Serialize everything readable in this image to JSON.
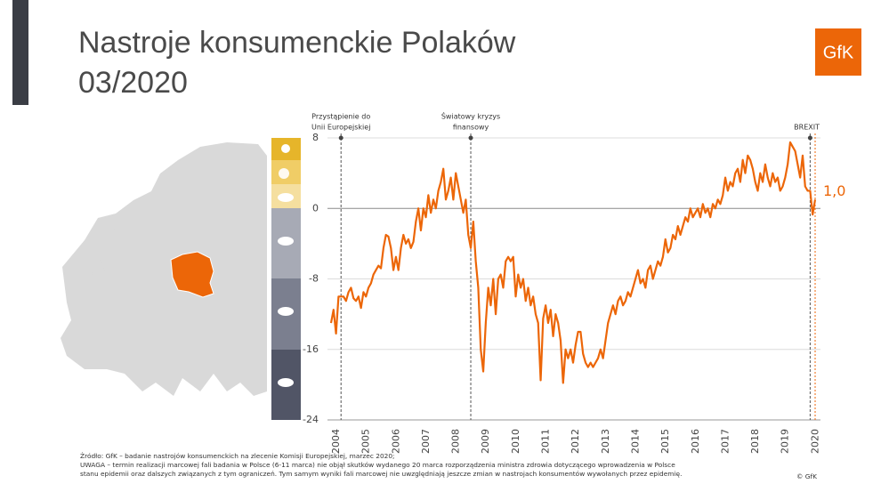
{
  "title_lines": [
    "Nastroje konsumenckie Polaków",
    "03/2020"
  ],
  "logo": "GfK",
  "chart_data": {
    "type": "line",
    "annotations": [
      {
        "lines": [
          "Przystąpienie do",
          "Unii Europejskiej"
        ]
      },
      {
        "lines": [
          "Światowy kryzys",
          "finansowy"
        ]
      },
      {
        "lines": [
          "BREXIT"
        ]
      }
    ],
    "color": "#ec6608",
    "ylim": [
      -24,
      8
    ],
    "yticks": [
      -24,
      -16,
      -8,
      0,
      8
    ],
    "grid": true,
    "categories": [
      "2004",
      null,
      null,
      null,
      null,
      null,
      null,
      null,
      null,
      null,
      null,
      null,
      "2005",
      null,
      null,
      null,
      null,
      null,
      null,
      null,
      null,
      null,
      null,
      null,
      "2006",
      null,
      null,
      null,
      null,
      null,
      null,
      null,
      null,
      null,
      null,
      null,
      "2007",
      null,
      null,
      null,
      null,
      null,
      null,
      null,
      null,
      null,
      null,
      null,
      "2008",
      null,
      null,
      null,
      null,
      null,
      null,
      null,
      null,
      null,
      null,
      null,
      "2009",
      null,
      null,
      null,
      null,
      null,
      null,
      null,
      null,
      null,
      null,
      null,
      "2010",
      null,
      null,
      null,
      null,
      null,
      null,
      null,
      null,
      null,
      null,
      null,
      "2011",
      null,
      null,
      null,
      null,
      null,
      null,
      null,
      null,
      null,
      null,
      null,
      "2012",
      null,
      null,
      null,
      null,
      null,
      null,
      null,
      null,
      null,
      null,
      null,
      "2013",
      null,
      null,
      null,
      null,
      null,
      null,
      null,
      null,
      null,
      null,
      null,
      "2014",
      null,
      null,
      null,
      null,
      null,
      null,
      null,
      null,
      null,
      null,
      null,
      "2015",
      null,
      null,
      null,
      null,
      null,
      null,
      null,
      null,
      null,
      null,
      null,
      "2016",
      null,
      null,
      null,
      null,
      null,
      null,
      null,
      null,
      null,
      null,
      null,
      "2017",
      null,
      null,
      null,
      null,
      null,
      null,
      null,
      null,
      null,
      null,
      null,
      "2018",
      null,
      null,
      null,
      null,
      null,
      null,
      null,
      null,
      null,
      null,
      null,
      "2019",
      null,
      null,
      null,
      null,
      null,
      null,
      null,
      null,
      null,
      null,
      null,
      "2020",
      null,
      null
    ],
    "values": [
      -13,
      -11.5,
      -14.2,
      -10,
      -10,
      -10,
      -10.5,
      -9.5,
      -9,
      -10.2,
      -10.5,
      -10,
      -11.3,
      -9.5,
      -10,
      -9,
      -8.5,
      -7.5,
      -7,
      -6.5,
      -6.8,
      -4.5,
      -3,
      -3.2,
      -4.5,
      -7,
      -5.5,
      -7,
      -4.5,
      -3,
      -4,
      -3.5,
      -4.5,
      -3.8,
      -1.5,
      0,
      -2.5,
      0,
      -1,
      1.5,
      -0.5,
      1,
      0,
      2,
      3,
      4.5,
      1,
      2,
      3.5,
      1,
      4,
      2.5,
      1,
      -0.5,
      1,
      -3,
      -4.5,
      -1.5,
      -6,
      -9,
      -16,
      -18.5,
      -13,
      -9,
      -11,
      -8,
      -12,
      -8,
      -7.5,
      -9,
      -6,
      -5.5,
      -6,
      -5.5,
      -10,
      -7.5,
      -9,
      -8,
      -10.5,
      -9,
      -11,
      -10,
      -12,
      -13,
      -19.5,
      -12.5,
      -11,
      -13,
      -11.5,
      -14.5,
      -12,
      -13,
      -15,
      -19.8,
      -16,
      -17,
      -16,
      -17.5,
      -15.5,
      -14,
      -14,
      -16.5,
      -17.5,
      -18,
      -17.5,
      -18,
      -17.5,
      -17,
      -16,
      -17,
      -15,
      -13,
      -12,
      -11,
      -12,
      -10.5,
      -10,
      -11,
      -10.5,
      -9.5,
      -10,
      -9,
      -8,
      -7,
      -8.5,
      -8,
      -9,
      -7,
      -6.5,
      -8,
      -7,
      -6,
      -6.5,
      -5.5,
      -3.5,
      -5,
      -4.5,
      -3,
      -3.5,
      -2,
      -3,
      -2,
      -1,
      -1.5,
      0,
      -1,
      -0.5,
      0,
      -1,
      0.5,
      -0.5,
      0,
      -1,
      0.5,
      0,
      1,
      0.5,
      1.5,
      3.5,
      2,
      3,
      2.5,
      4,
      4.5,
      3,
      5.5,
      4,
      6,
      5.5,
      4.5,
      3,
      2,
      4,
      3,
      5,
      3.5,
      2.5,
      4,
      3,
      3.5,
      2,
      2.5,
      3.5,
      5,
      7.5,
      7,
      6.5,
      5,
      3.5,
      6,
      2.5,
      2,
      2,
      -0.7,
      1.0
    ],
    "value_labels": [
      null,
      null,
      null,
      null,
      null,
      null,
      null,
      null,
      null,
      null,
      null,
      null,
      null,
      null,
      null,
      null,
      null,
      null,
      null,
      null,
      null,
      null,
      null,
      null,
      null,
      null,
      null,
      null,
      null,
      null,
      null,
      null,
      null,
      null,
      null,
      null,
      null,
      null,
      null,
      null,
      null,
      null,
      null,
      null,
      null,
      null,
      null,
      null,
      null,
      null,
      null,
      null,
      null,
      null,
      null,
      null,
      null,
      null,
      null,
      null,
      null,
      null,
      null,
      null,
      null,
      null,
      null,
      null,
      null,
      null,
      null,
      null,
      null,
      null,
      null,
      null,
      null,
      null,
      null,
      null,
      null,
      null,
      null,
      null,
      null,
      null,
      null,
      null,
      null,
      null,
      null,
      null,
      null,
      null,
      null,
      null,
      null,
      null,
      null,
      null,
      null,
      null,
      null,
      null,
      null,
      null,
      null,
      null,
      null,
      null,
      null,
      null,
      null,
      null,
      null,
      null,
      null,
      null,
      null,
      null,
      null,
      null,
      null,
      null,
      null,
      null,
      null,
      null,
      null,
      null,
      null,
      null,
      null,
      null,
      null,
      null,
      null,
      null,
      null,
      null,
      null,
      null,
      null,
      null,
      null,
      null,
      null,
      null,
      null,
      null,
      null,
      null,
      null,
      null,
      null,
      null,
      null,
      null,
      null,
      null,
      null,
      null,
      null,
      null,
      null,
      null,
      null,
      null,
      null,
      null,
      null,
      null,
      null,
      null,
      null,
      null,
      null,
      null,
      null,
      null,
      null,
      null,
      null,
      null,
      null,
      null,
      null,
      null,
      null,
      null,
      null,
      null,
      null,
      null,
      "1,0"
    ]
  },
  "footnote": [
    "Źródło: GfK – badanie nastrojów konsumenckich na zlecenie Komisji Europejskiej, marzec 2020;",
    "UWAGA – termin realizacji marcowej fali badania w Polsce (6-11 marca) nie objął skutków wydanego 20 marca rozporządzenia ministra zdrowia dotyczącego wprowadzenia w Polsce",
    "stanu epidemii oraz dalszych związanych z tym ograniczeń. Tym samym wyniki fali marcowej nie uwzględniają jeszcze zmian w nastrojach konsumentów wywołanych przez epidemię."
  ],
  "copyright": "© GfK"
}
